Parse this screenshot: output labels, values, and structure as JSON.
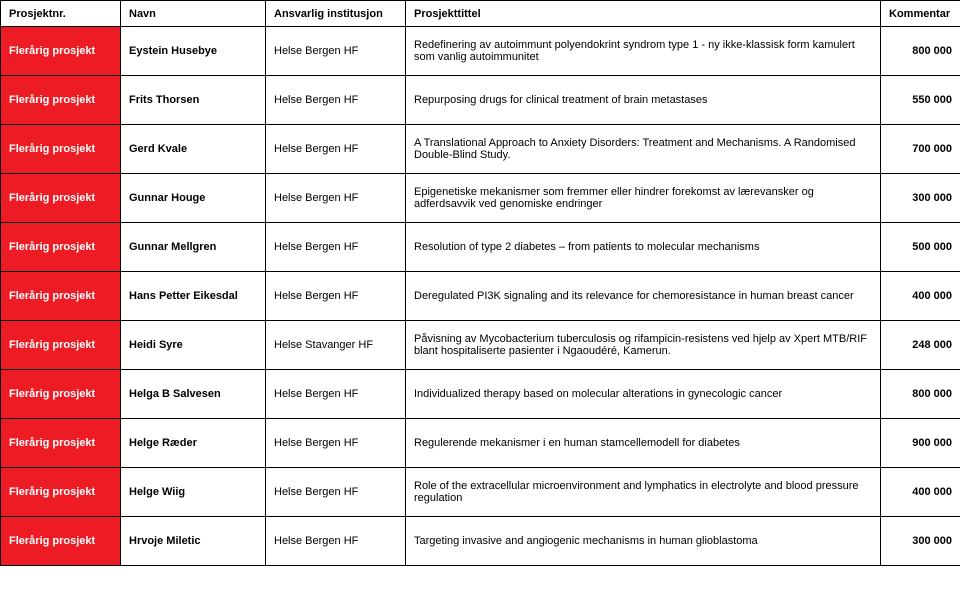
{
  "headers": {
    "prosjektnr": "Prosjektnr.",
    "navn": "Navn",
    "institusjon": "Ansvarlig institusjon",
    "tittel": "Prosjekttittel",
    "kommentar": "Kommentar"
  },
  "rows": [
    {
      "type": "Flerårig prosjekt",
      "name": "Eystein Husebye",
      "inst": "Helse Bergen HF",
      "title": "Redefinering av autoimmunt polyendokrint syndrom type 1 - ny ikke-klassisk form kamulert som vanlig autoimmunitet",
      "komm": "800 000"
    },
    {
      "type": "Flerårig prosjekt",
      "name": "Frits Thorsen",
      "inst": "Helse Bergen HF",
      "title": "Repurposing drugs for clinical treatment of brain metastases",
      "komm": "550 000"
    },
    {
      "type": "Flerårig prosjekt",
      "name": "Gerd Kvale",
      "inst": "Helse Bergen HF",
      "title": "A Translational Approach to Anxiety Disorders: Treatment and Mechanisms. A Randomised Double-Blind Study.",
      "komm": "700 000"
    },
    {
      "type": "Flerårig prosjekt",
      "name": "Gunnar Houge",
      "inst": "Helse Bergen HF",
      "title": "Epigenetiske mekanismer som fremmer eller hindrer forekomst av lærevansker og adferdsavvik ved genomiske endringer",
      "komm": "300 000"
    },
    {
      "type": "Flerårig prosjekt",
      "name": "Gunnar Mellgren",
      "inst": "Helse Bergen HF",
      "title": "Resolution of type 2 diabetes – from patients to molecular mechanisms",
      "komm": "500 000"
    },
    {
      "type": "Flerårig prosjekt",
      "name": "Hans Petter Eikesdal",
      "inst": "Helse Bergen HF",
      "title": "Deregulated PI3K signaling and its relevance for chemoresistance in human breast cancer",
      "komm": "400 000"
    },
    {
      "type": "Flerårig prosjekt",
      "name": "Heidi Syre",
      "inst": "Helse Stavanger HF",
      "title": "Påvisning av Mycobacterium tuberculosis og rifampicin-resistens ved hjelp av Xpert MTB/RIF blant hospitaliserte pasienter i Ngaoudéré, Kamerun.",
      "komm": "248 000"
    },
    {
      "type": "Flerårig prosjekt",
      "name": "Helga B Salvesen",
      "inst": "Helse Bergen HF",
      "title": "Individualized therapy based on molecular alterations in gynecologic cancer",
      "komm": "800 000"
    },
    {
      "type": "Flerårig prosjekt",
      "name": "Helge Ræder",
      "inst": "Helse Bergen HF",
      "title": "Regulerende mekanismer i en human stamcellemodell for diabetes",
      "komm": "900 000"
    },
    {
      "type": "Flerårig prosjekt",
      "name": "Helge Wiig",
      "inst": "Helse Bergen HF",
      "title": "Role of the extracellular microenvironment and lymphatics in electrolyte and blood pressure regulation",
      "komm": "400 000"
    },
    {
      "type": "Flerårig prosjekt",
      "name": "Hrvoje Miletic",
      "inst": "Helse Bergen HF",
      "title": "Targeting invasive and angiogenic mechanisms in human glioblastoma",
      "komm": "300 000"
    }
  ],
  "style": {
    "type_bg": "#ed1c24",
    "type_fg": "#ffffff",
    "border": "#000000",
    "bg": "#ffffff",
    "font_size": 11
  }
}
